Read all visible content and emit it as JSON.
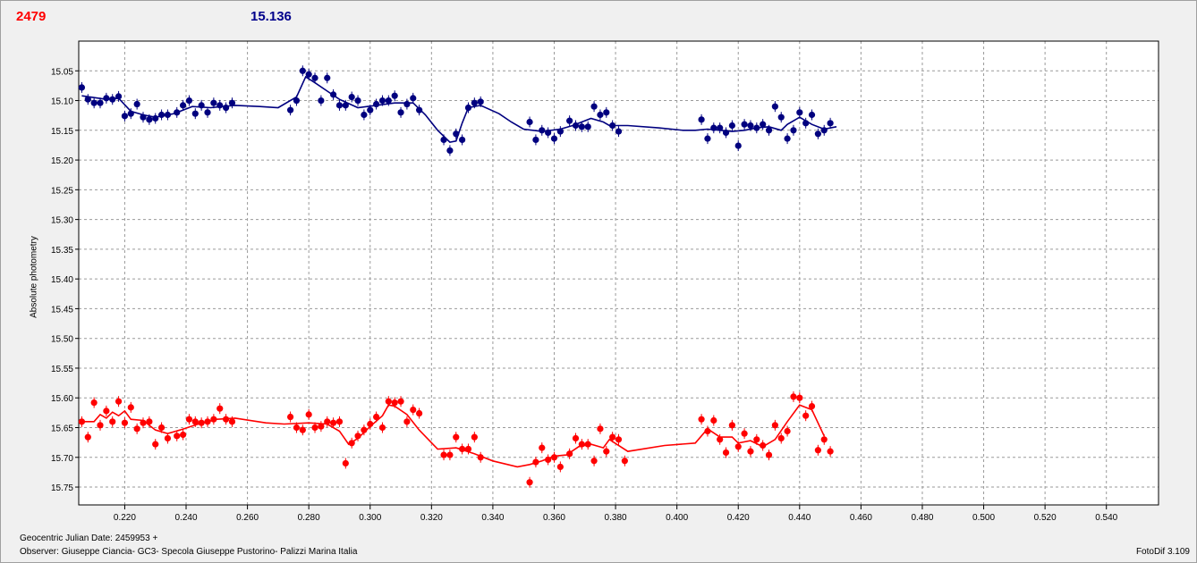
{
  "header": {
    "object_id": "2479",
    "mean_mag": "15.136",
    "id_color": "#ff0000",
    "mag_color": "#00008b"
  },
  "footer": {
    "jd_label": "Geocentric Julian Date:",
    "jd_value": "2459953 +",
    "observer_label": "Observer:",
    "observer_value": "Giuseppe Ciancia- GC3- Specola Giuseppe Pustorino- Palizzi Marina Italia",
    "version": "FotoDif 3.109"
  },
  "chart_data": {
    "type": "scatter",
    "ylabel": "Absolute photometry",
    "xlim": [
      0.205,
      0.557
    ],
    "ylim": [
      15.0,
      15.78
    ],
    "y_inverted": true,
    "grid": true,
    "x_ticks": [
      "0.220",
      "0.240",
      "0.260",
      "0.280",
      "0.300",
      "0.320",
      "0.340",
      "0.360",
      "0.380",
      "0.400",
      "0.420",
      "0.440",
      "0.460",
      "0.480",
      "0.500",
      "0.520",
      "0.540"
    ],
    "y_ticks": [
      "15.05",
      "15.10",
      "15.15",
      "15.20",
      "15.25",
      "15.30",
      "15.35",
      "15.40",
      "15.45",
      "15.50",
      "15.55",
      "15.60",
      "15.65",
      "15.70",
      "15.75"
    ],
    "series": [
      {
        "color": "#00007f",
        "points": [
          [
            0.206,
            15.078
          ],
          [
            0.208,
            15.098
          ],
          [
            0.21,
            15.104
          ],
          [
            0.212,
            15.104
          ],
          [
            0.214,
            15.096
          ],
          [
            0.216,
            15.098
          ],
          [
            0.218,
            15.093
          ],
          [
            0.22,
            15.126
          ],
          [
            0.222,
            15.122
          ],
          [
            0.224,
            15.106
          ],
          [
            0.226,
            15.128
          ],
          [
            0.228,
            15.132
          ],
          [
            0.23,
            15.13
          ],
          [
            0.232,
            15.124
          ],
          [
            0.234,
            15.124
          ],
          [
            0.237,
            15.12
          ],
          [
            0.239,
            15.108
          ],
          [
            0.241,
            15.1
          ],
          [
            0.243,
            15.122
          ],
          [
            0.245,
            15.108
          ],
          [
            0.247,
            15.12
          ],
          [
            0.249,
            15.104
          ],
          [
            0.251,
            15.108
          ],
          [
            0.253,
            15.112
          ],
          [
            0.255,
            15.104
          ],
          [
            0.274,
            15.116
          ],
          [
            0.276,
            15.1
          ],
          [
            0.278,
            15.05
          ],
          [
            0.28,
            15.056
          ],
          [
            0.282,
            15.062
          ],
          [
            0.284,
            15.1
          ],
          [
            0.286,
            15.062
          ],
          [
            0.288,
            15.09
          ],
          [
            0.29,
            15.108
          ],
          [
            0.292,
            15.108
          ],
          [
            0.294,
            15.094
          ],
          [
            0.296,
            15.1
          ],
          [
            0.298,
            15.124
          ],
          [
            0.3,
            15.116
          ],
          [
            0.302,
            15.106
          ],
          [
            0.304,
            15.1
          ],
          [
            0.306,
            15.1
          ],
          [
            0.308,
            15.092
          ],
          [
            0.31,
            15.12
          ],
          [
            0.312,
            15.106
          ],
          [
            0.314,
            15.096
          ],
          [
            0.316,
            15.116
          ],
          [
            0.324,
            15.166
          ],
          [
            0.326,
            15.184
          ],
          [
            0.328,
            15.156
          ],
          [
            0.33,
            15.166
          ],
          [
            0.332,
            15.112
          ],
          [
            0.334,
            15.104
          ],
          [
            0.336,
            15.102
          ],
          [
            0.352,
            15.136
          ],
          [
            0.354,
            15.166
          ],
          [
            0.356,
            15.15
          ],
          [
            0.358,
            15.154
          ],
          [
            0.36,
            15.164
          ],
          [
            0.362,
            15.152
          ],
          [
            0.365,
            15.134
          ],
          [
            0.367,
            15.142
          ],
          [
            0.369,
            15.144
          ],
          [
            0.371,
            15.144
          ],
          [
            0.373,
            15.11
          ],
          [
            0.375,
            15.124
          ],
          [
            0.377,
            15.12
          ],
          [
            0.379,
            15.142
          ],
          [
            0.381,
            15.152
          ],
          [
            0.408,
            15.132
          ],
          [
            0.41,
            15.164
          ],
          [
            0.412,
            15.146
          ],
          [
            0.414,
            15.146
          ],
          [
            0.416,
            15.154
          ],
          [
            0.418,
            15.142
          ],
          [
            0.42,
            15.176
          ],
          [
            0.422,
            15.14
          ],
          [
            0.424,
            15.142
          ],
          [
            0.426,
            15.146
          ],
          [
            0.428,
            15.14
          ],
          [
            0.43,
            15.15
          ],
          [
            0.432,
            15.11
          ],
          [
            0.434,
            15.128
          ],
          [
            0.436,
            15.164
          ],
          [
            0.438,
            15.15
          ],
          [
            0.44,
            15.12
          ],
          [
            0.442,
            15.138
          ],
          [
            0.444,
            15.124
          ],
          [
            0.446,
            15.156
          ],
          [
            0.448,
            15.15
          ],
          [
            0.45,
            15.138
          ]
        ],
        "curve": [
          [
            0.206,
            15.092
          ],
          [
            0.214,
            15.098
          ],
          [
            0.218,
            15.096
          ],
          [
            0.222,
            15.118
          ],
          [
            0.226,
            15.124
          ],
          [
            0.23,
            15.128
          ],
          [
            0.236,
            15.122
          ],
          [
            0.242,
            15.11
          ],
          [
            0.248,
            15.112
          ],
          [
            0.252,
            15.11
          ],
          [
            0.256,
            15.108
          ],
          [
            0.264,
            15.11
          ],
          [
            0.27,
            15.112
          ],
          [
            0.276,
            15.094
          ],
          [
            0.279,
            15.06
          ],
          [
            0.282,
            15.07
          ],
          [
            0.286,
            15.084
          ],
          [
            0.29,
            15.098
          ],
          [
            0.296,
            15.112
          ],
          [
            0.302,
            15.108
          ],
          [
            0.308,
            15.104
          ],
          [
            0.314,
            15.104
          ],
          [
            0.318,
            15.124
          ],
          [
            0.322,
            15.15
          ],
          [
            0.326,
            15.17
          ],
          [
            0.328,
            15.168
          ],
          [
            0.33,
            15.138
          ],
          [
            0.332,
            15.112
          ],
          [
            0.336,
            15.108
          ],
          [
            0.342,
            15.122
          ],
          [
            0.346,
            15.136
          ],
          [
            0.35,
            15.148
          ],
          [
            0.356,
            15.152
          ],
          [
            0.362,
            15.148
          ],
          [
            0.366,
            15.142
          ],
          [
            0.372,
            15.13
          ],
          [
            0.376,
            15.136
          ],
          [
            0.378,
            15.142
          ],
          [
            0.384,
            15.142
          ],
          [
            0.394,
            15.146
          ],
          [
            0.402,
            15.15
          ],
          [
            0.406,
            15.15
          ],
          [
            0.41,
            15.148
          ],
          [
            0.414,
            15.15
          ],
          [
            0.418,
            15.152
          ],
          [
            0.422,
            15.15
          ],
          [
            0.426,
            15.146
          ],
          [
            0.43,
            15.144
          ],
          [
            0.434,
            15.15
          ],
          [
            0.436,
            15.14
          ],
          [
            0.44,
            15.128
          ],
          [
            0.444,
            15.14
          ],
          [
            0.448,
            15.148
          ],
          [
            0.452,
            15.144
          ]
        ]
      },
      {
        "color": "#ff0000",
        "points": [
          [
            0.206,
            15.64
          ],
          [
            0.208,
            15.666
          ],
          [
            0.21,
            15.608
          ],
          [
            0.212,
            15.646
          ],
          [
            0.214,
            15.622
          ],
          [
            0.216,
            15.64
          ],
          [
            0.218,
            15.606
          ],
          [
            0.22,
            15.642
          ],
          [
            0.222,
            15.616
          ],
          [
            0.224,
            15.652
          ],
          [
            0.226,
            15.642
          ],
          [
            0.228,
            15.64
          ],
          [
            0.23,
            15.678
          ],
          [
            0.232,
            15.65
          ],
          [
            0.234,
            15.668
          ],
          [
            0.237,
            15.664
          ],
          [
            0.239,
            15.662
          ],
          [
            0.241,
            15.636
          ],
          [
            0.243,
            15.64
          ],
          [
            0.245,
            15.642
          ],
          [
            0.247,
            15.64
          ],
          [
            0.249,
            15.636
          ],
          [
            0.251,
            15.618
          ],
          [
            0.253,
            15.636
          ],
          [
            0.255,
            15.64
          ],
          [
            0.274,
            15.632
          ],
          [
            0.276,
            15.65
          ],
          [
            0.278,
            15.654
          ],
          [
            0.28,
            15.628
          ],
          [
            0.282,
            15.65
          ],
          [
            0.284,
            15.648
          ],
          [
            0.286,
            15.64
          ],
          [
            0.288,
            15.642
          ],
          [
            0.29,
            15.64
          ],
          [
            0.292,
            15.71
          ],
          [
            0.294,
            15.676
          ],
          [
            0.296,
            15.664
          ],
          [
            0.298,
            15.654
          ],
          [
            0.3,
            15.644
          ],
          [
            0.302,
            15.632
          ],
          [
            0.304,
            15.65
          ],
          [
            0.306,
            15.606
          ],
          [
            0.308,
            15.608
          ],
          [
            0.31,
            15.606
          ],
          [
            0.312,
            15.64
          ],
          [
            0.314,
            15.62
          ],
          [
            0.316,
            15.626
          ],
          [
            0.324,
            15.696
          ],
          [
            0.326,
            15.696
          ],
          [
            0.328,
            15.666
          ],
          [
            0.33,
            15.686
          ],
          [
            0.332,
            15.686
          ],
          [
            0.334,
            15.666
          ],
          [
            0.336,
            15.7
          ],
          [
            0.352,
            15.742
          ],
          [
            0.354,
            15.708
          ],
          [
            0.356,
            15.684
          ],
          [
            0.358,
            15.704
          ],
          [
            0.36,
            15.7
          ],
          [
            0.362,
            15.716
          ],
          [
            0.365,
            15.694
          ],
          [
            0.367,
            15.668
          ],
          [
            0.369,
            15.678
          ],
          [
            0.371,
            15.678
          ],
          [
            0.373,
            15.706
          ],
          [
            0.375,
            15.652
          ],
          [
            0.377,
            15.69
          ],
          [
            0.379,
            15.666
          ],
          [
            0.381,
            15.67
          ],
          [
            0.383,
            15.706
          ],
          [
            0.408,
            15.636
          ],
          [
            0.41,
            15.656
          ],
          [
            0.412,
            15.638
          ],
          [
            0.414,
            15.67
          ],
          [
            0.416,
            15.692
          ],
          [
            0.418,
            15.646
          ],
          [
            0.42,
            15.682
          ],
          [
            0.422,
            15.66
          ],
          [
            0.424,
            15.69
          ],
          [
            0.426,
            15.67
          ],
          [
            0.428,
            15.68
          ],
          [
            0.43,
            15.696
          ],
          [
            0.432,
            15.646
          ],
          [
            0.434,
            15.668
          ],
          [
            0.436,
            15.656
          ],
          [
            0.438,
            15.598
          ],
          [
            0.44,
            15.6
          ],
          [
            0.442,
            15.63
          ],
          [
            0.444,
            15.614
          ],
          [
            0.446,
            15.688
          ],
          [
            0.448,
            15.67
          ],
          [
            0.45,
            15.69
          ]
        ],
        "curve": [
          [
            0.206,
            15.64
          ],
          [
            0.21,
            15.64
          ],
          [
            0.212,
            15.628
          ],
          [
            0.214,
            15.634
          ],
          [
            0.216,
            15.624
          ],
          [
            0.218,
            15.63
          ],
          [
            0.22,
            15.622
          ],
          [
            0.222,
            15.636
          ],
          [
            0.226,
            15.638
          ],
          [
            0.23,
            15.654
          ],
          [
            0.234,
            15.66
          ],
          [
            0.238,
            15.654
          ],
          [
            0.244,
            15.644
          ],
          [
            0.25,
            15.636
          ],
          [
            0.256,
            15.634
          ],
          [
            0.266,
            15.642
          ],
          [
            0.272,
            15.644
          ],
          [
            0.28,
            15.642
          ],
          [
            0.286,
            15.644
          ],
          [
            0.29,
            15.656
          ],
          [
            0.293,
            15.678
          ],
          [
            0.296,
            15.668
          ],
          [
            0.3,
            15.648
          ],
          [
            0.304,
            15.63
          ],
          [
            0.306,
            15.612
          ],
          [
            0.308,
            15.614
          ],
          [
            0.312,
            15.628
          ],
          [
            0.316,
            15.654
          ],
          [
            0.322,
            15.686
          ],
          [
            0.328,
            15.684
          ],
          [
            0.334,
            15.694
          ],
          [
            0.34,
            15.706
          ],
          [
            0.348,
            15.716
          ],
          [
            0.352,
            15.712
          ],
          [
            0.356,
            15.706
          ],
          [
            0.36,
            15.698
          ],
          [
            0.364,
            15.696
          ],
          [
            0.368,
            15.682
          ],
          [
            0.372,
            15.678
          ],
          [
            0.376,
            15.684
          ],
          [
            0.378,
            15.67
          ],
          [
            0.384,
            15.69
          ],
          [
            0.396,
            15.68
          ],
          [
            0.406,
            15.676
          ],
          [
            0.41,
            15.652
          ],
          [
            0.414,
            15.666
          ],
          [
            0.418,
            15.666
          ],
          [
            0.42,
            15.676
          ],
          [
            0.424,
            15.672
          ],
          [
            0.428,
            15.682
          ],
          [
            0.432,
            15.67
          ],
          [
            0.436,
            15.64
          ],
          [
            0.44,
            15.612
          ],
          [
            0.444,
            15.62
          ],
          [
            0.448,
            15.664
          ]
        ]
      }
    ]
  }
}
